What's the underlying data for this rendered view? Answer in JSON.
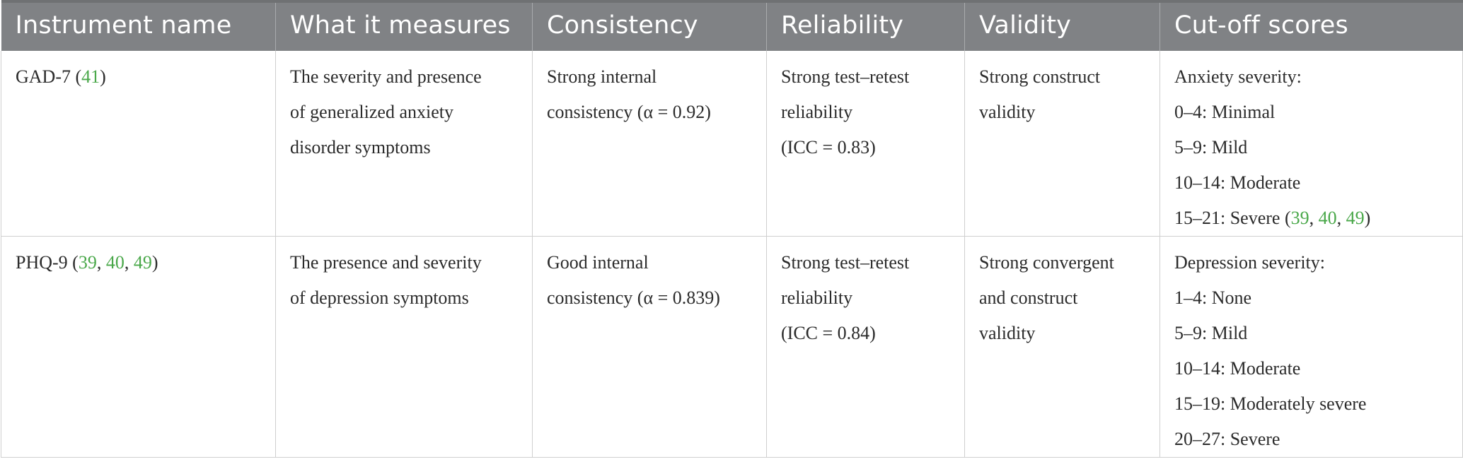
{
  "headers": [
    "Instrument name",
    "What it measures",
    "Consistency",
    "Reliability",
    "Validity",
    "Cut-off scores"
  ],
  "rows": [
    {
      "instrument": {
        "name": "GAD-7",
        "refs": [
          "41"
        ]
      },
      "measures": [
        "The severity and presence",
        "of generalized anxiety",
        "disorder symptoms"
      ],
      "consistency": [
        "Strong internal",
        "consistency (α = 0.92)"
      ],
      "reliability": [
        "Strong test–retest",
        "reliability",
        "(ICC = 0.83)"
      ],
      "validity": [
        "Strong construct",
        "validity"
      ],
      "cutoff": {
        "title": "Anxiety severity:",
        "lines": [
          "0–4: Minimal",
          "5–9: Mild",
          "10–14: Moderate",
          "15–21: Severe"
        ],
        "last_refs": [
          "39",
          "40",
          "49"
        ]
      }
    },
    {
      "instrument": {
        "name": "PHQ-9",
        "refs": [
          "39",
          "40",
          "49"
        ]
      },
      "measures": [
        "The presence and severity",
        "of depression symptoms"
      ],
      "consistency": [
        "Good internal",
        "consistency (α = 0.839)"
      ],
      "reliability": [
        "Strong test–retest",
        "reliability",
        "(ICC = 0.84)"
      ],
      "validity": [
        "Strong convergent",
        "and construct",
        "validity"
      ],
      "cutoff": {
        "title": "Depression severity:",
        "lines": [
          "1–4: None",
          "5–9: Mild",
          "10–14: Moderate",
          "15–19: Moderately severe",
          "20–27: Severe"
        ]
      }
    }
  ]
}
